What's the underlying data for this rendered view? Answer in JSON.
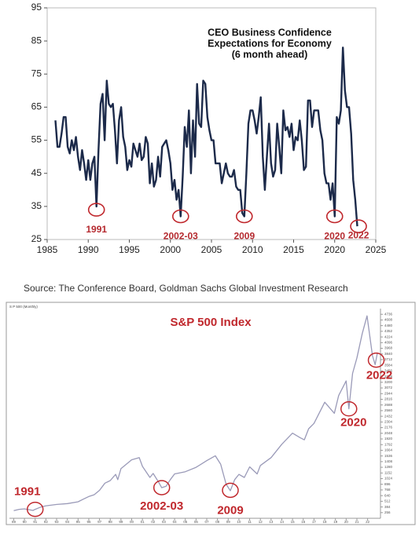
{
  "chart_data": [
    {
      "type": "line",
      "title": [
        "CEO Business Confidence",
        "Expectations for Economy",
        "(6 month ahead)"
      ],
      "color": "#1c2a4a",
      "x": [
        1986,
        1986.25,
        1986.5,
        1986.75,
        1987,
        1987.25,
        1987.5,
        1987.75,
        1988,
        1988.25,
        1988.5,
        1988.75,
        1989,
        1989.25,
        1989.5,
        1989.75,
        1990,
        1990.25,
        1990.5,
        1990.75,
        1991,
        1991.25,
        1991.5,
        1991.75,
        1992,
        1992.25,
        1992.5,
        1992.75,
        1993,
        1993.25,
        1993.5,
        1993.75,
        1994,
        1994.25,
        1994.5,
        1994.75,
        1995,
        1995.25,
        1995.5,
        1995.75,
        1996,
        1996.25,
        1996.5,
        1996.75,
        1997,
        1997.25,
        1997.5,
        1997.75,
        1998,
        1998.25,
        1998.5,
        1998.75,
        1999,
        1999.25,
        1999.5,
        1999.75,
        2000,
        2000.25,
        2000.5,
        2000.75,
        2001,
        2001.25,
        2001.5,
        2001.75,
        2002,
        2002.25,
        2002.5,
        2002.75,
        2003,
        2003.25,
        2003.5,
        2003.75,
        2004,
        2004.25,
        2004.5,
        2004.75,
        2005,
        2005.25,
        2005.5,
        2005.75,
        2006,
        2006.25,
        2006.5,
        2006.75,
        2007,
        2007.25,
        2007.5,
        2007.75,
        2008,
        2008.25,
        2008.5,
        2008.75,
        2009,
        2009.25,
        2009.5,
        2009.75,
        2010,
        2010.25,
        2010.5,
        2010.75,
        2011,
        2011.25,
        2011.5,
        2011.75,
        2012,
        2012.25,
        2012.5,
        2012.75,
        2013,
        2013.25,
        2013.5,
        2013.75,
        2014,
        2014.25,
        2014.5,
        2014.75,
        2015,
        2015.25,
        2015.5,
        2015.75,
        2016,
        2016.25,
        2016.5,
        2016.75,
        2017,
        2017.25,
        2017.5,
        2017.75,
        2018,
        2018.25,
        2018.5,
        2018.75,
        2019,
        2019.25,
        2019.5,
        2019.75,
        2020,
        2020.25,
        2020.5,
        2020.75,
        2021,
        2021.25,
        2021.5,
        2021.75,
        2022,
        2022.25,
        2022.5,
        2022.75
      ],
      "values": [
        61,
        53,
        53,
        57,
        62,
        62,
        53,
        51,
        55,
        52,
        56,
        50,
        46,
        52,
        48,
        43,
        49,
        43,
        48,
        50,
        35,
        52,
        66,
        69,
        55,
        73,
        66,
        65,
        66,
        58,
        48,
        61,
        65,
        56,
        53,
        46,
        49,
        47,
        54,
        52,
        50,
        54,
        49,
        50,
        56,
        54,
        42,
        48,
        41,
        43,
        50,
        44,
        53,
        54,
        55,
        52,
        48,
        40,
        43,
        37,
        40,
        32,
        44,
        59,
        53,
        64,
        45,
        61,
        50,
        72,
        60,
        59,
        73,
        72,
        62,
        58,
        55,
        55,
        48,
        48,
        48,
        42,
        45,
        48,
        45,
        44,
        44,
        46,
        41,
        40,
        40,
        33,
        32,
        45,
        60,
        64,
        64,
        61,
        57,
        62,
        68,
        50,
        40,
        50,
        60,
        48,
        44,
        46,
        60,
        53,
        45,
        64,
        58,
        59,
        56,
        60,
        52,
        56,
        55,
        61,
        55,
        46,
        47,
        67,
        67,
        59,
        64,
        64,
        64,
        58,
        55,
        45,
        42,
        42,
        37,
        42,
        32,
        62,
        60,
        64,
        83,
        70,
        65,
        65,
        57,
        43,
        37,
        29
      ],
      "xlim": [
        1985,
        2025
      ],
      "ylim": [
        25,
        95
      ],
      "xticks": [
        1985,
        1990,
        1995,
        2000,
        2005,
        2010,
        2015,
        2020,
        2025
      ],
      "yticks": [
        25,
        35,
        45,
        55,
        65,
        75,
        85,
        95
      ],
      "annotations": [
        {
          "text": "1991",
          "x": 1991,
          "y": 34
        },
        {
          "text": "2002-03",
          "x": 2001.25,
          "y": 32
        },
        {
          "text": "2009",
          "x": 2009,
          "y": 32
        },
        {
          "text": "2020",
          "x": 2020,
          "y": 32
        },
        {
          "text": "2022",
          "x": 2022.9,
          "y": 29
        }
      ],
      "source": "Source: The Conference Board, Goldman Sachs Global Investment Research"
    },
    {
      "type": "line",
      "title": "S&P 500 Index",
      "label": "S P 500 (Monthly)",
      "color": "#9a9ab8",
      "x": [
        1989,
        1989.5,
        1990,
        1990.8,
        1991,
        1991.5,
        1992,
        1993,
        1994,
        1995,
        1995.5,
        1996,
        1996.5,
        1997,
        1997.5,
        1998,
        1998.5,
        1998.7,
        1999,
        1999.5,
        2000,
        2000.7,
        2001,
        2001.7,
        2002,
        2002.5,
        2002.8,
        2003.2,
        2003.6,
        2004,
        2005,
        2006,
        2007,
        2007.8,
        2008.3,
        2008.8,
        2009.2,
        2009.6,
        2010,
        2010.5,
        2011,
        2011.7,
        2012,
        2013,
        2013.5,
        2014,
        2015,
        2015.7,
        2016.1,
        2016.5,
        2017,
        2018,
        2018.9,
        2019.3,
        2020,
        2020.25,
        2020.6,
        2021,
        2021.5,
        2021.95,
        2022.45,
        2022.7,
        2022.9
      ],
      "values": [
        300,
        330,
        340,
        305,
        330,
        380,
        410,
        440,
        460,
        500,
        560,
        620,
        660,
        760,
        920,
        980,
        1120,
        1000,
        1250,
        1350,
        1450,
        1500,
        1300,
        1050,
        1140,
        950,
        820,
        850,
        1000,
        1130,
        1180,
        1280,
        1430,
        1540,
        1350,
        900,
        750,
        1000,
        1120,
        1050,
        1290,
        1130,
        1320,
        1500,
        1650,
        1800,
        2050,
        1950,
        1900,
        2150,
        2270,
        2750,
        2500,
        2900,
        3230,
        2600,
        3400,
        3750,
        4300,
        4700,
        3800,
        3600,
        3850
      ],
      "xlim": [
        1988.6,
        2023.2
      ],
      "ylim": [
        128,
        4864
      ],
      "yticks": [
        256,
        384,
        512,
        640,
        768,
        896,
        1024,
        1152,
        1280,
        1408,
        1536,
        1664,
        1792,
        1920,
        2048,
        2176,
        2304,
        2432,
        2560,
        2688,
        2816,
        2944,
        3072,
        3200,
        3328,
        3456,
        3584,
        3712,
        3840,
        3968,
        4096,
        4224,
        4352,
        4480,
        4608,
        4736
      ],
      "xticks": [
        {
          "value": 1989,
          "label": "89"
        },
        {
          "value": 1990,
          "label": "90"
        },
        {
          "value": 1991,
          "label": "91"
        },
        {
          "value": 1992,
          "label": "92"
        },
        {
          "value": 1993,
          "label": "93"
        },
        {
          "value": 1994,
          "label": "94"
        },
        {
          "value": 1995,
          "label": "95"
        },
        {
          "value": 1996,
          "label": "96"
        },
        {
          "value": 1997,
          "label": "97"
        },
        {
          "value": 1998,
          "label": "98"
        },
        {
          "value": 1999,
          "label": "99"
        },
        {
          "value": 2000,
          "label": "00"
        },
        {
          "value": 2001,
          "label": "01"
        },
        {
          "value": 2002,
          "label": "02"
        },
        {
          "value": 2003,
          "label": "03"
        },
        {
          "value": 2004,
          "label": "04"
        },
        {
          "value": 2005,
          "label": "05"
        },
        {
          "value": 2006,
          "label": "06"
        },
        {
          "value": 2007,
          "label": "07"
        },
        {
          "value": 2008,
          "label": "08"
        },
        {
          "value": 2009,
          "label": "09"
        },
        {
          "value": 2010,
          "label": "10"
        },
        {
          "value": 2011,
          "label": "11"
        },
        {
          "value": 2012,
          "label": "12"
        },
        {
          "value": 2013,
          "label": "13"
        },
        {
          "value": 2014,
          "label": "14"
        },
        {
          "value": 2015,
          "label": "15"
        },
        {
          "value": 2016,
          "label": "16"
        },
        {
          "value": 2017,
          "label": "17"
        },
        {
          "value": 2018,
          "label": "18"
        },
        {
          "value": 2019,
          "label": "19"
        },
        {
          "value": 2020,
          "label": "20"
        },
        {
          "value": 2021,
          "label": "21"
        },
        {
          "value": 2022,
          "label": "22"
        }
      ],
      "annotations": [
        {
          "text": "1991",
          "x": 1991,
          "y": 330
        },
        {
          "text": "2002-03",
          "x": 2002.8,
          "y": 820
        },
        {
          "text": "2009",
          "x": 2009.2,
          "y": 760
        },
        {
          "text": "2020",
          "x": 2020.25,
          "y": 2600
        },
        {
          "text": "2022",
          "x": 2022.8,
          "y": 3700
        }
      ]
    }
  ]
}
